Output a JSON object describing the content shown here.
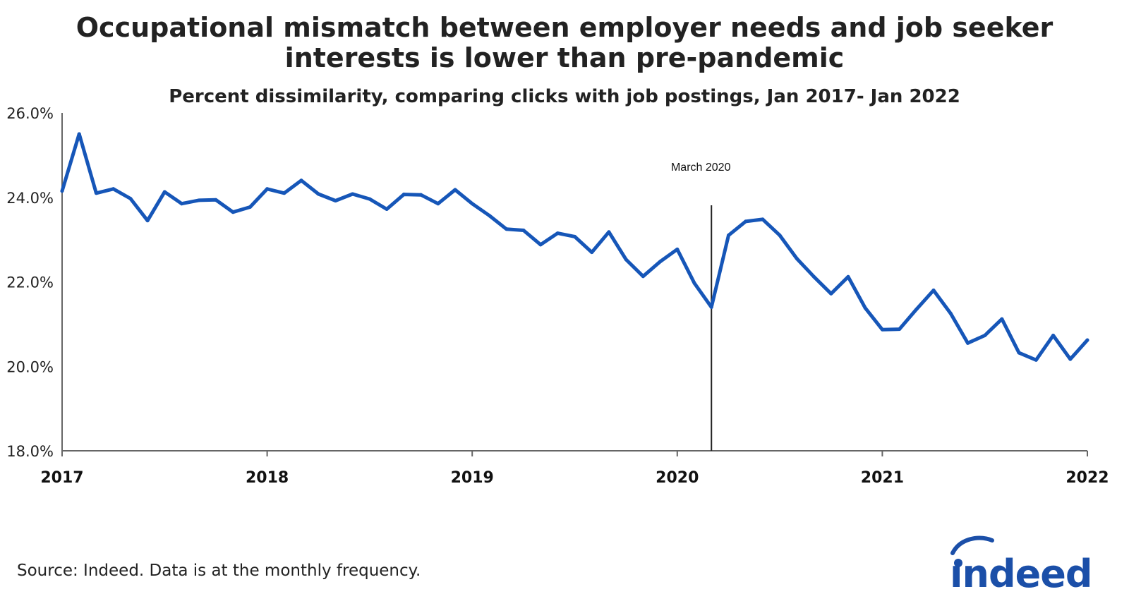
{
  "title_lines": [
    "Occupational mismatch between employer needs and job seeker",
    "interests is lower than pre-pandemic"
  ],
  "subtitle": "Percent dissimilarity, comparing clicks with job postings, Jan 2017- Jan 2022",
  "source": "Source: Indeed. Data is at the monthly frequency.",
  "logo_text": "indeed",
  "colors": {
    "line": "#1656b8",
    "axis": "#666666",
    "annotation": "#222222",
    "logo": "#1b4fa8"
  },
  "chart_data": {
    "type": "line",
    "title": "Occupational mismatch between employer needs and job seeker interests is lower than pre-pandemic",
    "subtitle": "Percent dissimilarity, comparing clicks with job postings, Jan 2017- Jan 2022",
    "xlabel": "",
    "ylabel": "",
    "xlim": [
      2017,
      2022
    ],
    "ylim": [
      18.0,
      26.0
    ],
    "x_ticks": [
      "2017",
      "2018",
      "2019",
      "2020",
      "2021",
      "2022"
    ],
    "y_ticks": [
      "18.0%",
      "20.0%",
      "22.0%",
      "24.0%",
      "26.0%"
    ],
    "y_tick_values": [
      18,
      20,
      22,
      24,
      26
    ],
    "grid": false,
    "annotations": [
      {
        "label": "March 2020",
        "x": "2020-03"
      }
    ],
    "series": [
      {
        "x_start": "2017-01",
        "frequency": "monthly",
        "values": [
          24.15,
          25.5,
          24.1,
          24.2,
          23.97,
          23.45,
          24.13,
          23.85,
          23.93,
          23.94,
          23.65,
          23.77,
          24.2,
          24.1,
          24.4,
          24.08,
          23.92,
          24.08,
          23.96,
          23.72,
          24.07,
          24.06,
          23.85,
          24.18,
          23.85,
          23.57,
          23.25,
          23.22,
          22.88,
          23.15,
          23.07,
          22.7,
          23.18,
          22.53,
          22.13,
          22.48,
          22.77,
          21.97,
          21.4,
          23.1,
          23.43,
          23.48,
          23.1,
          22.55,
          22.12,
          21.72,
          22.12,
          21.38,
          20.87,
          20.88,
          21.35,
          21.8,
          21.25,
          20.55,
          20.73,
          21.12,
          20.32,
          20.15,
          20.73,
          20.17,
          20.62
        ]
      }
    ]
  }
}
